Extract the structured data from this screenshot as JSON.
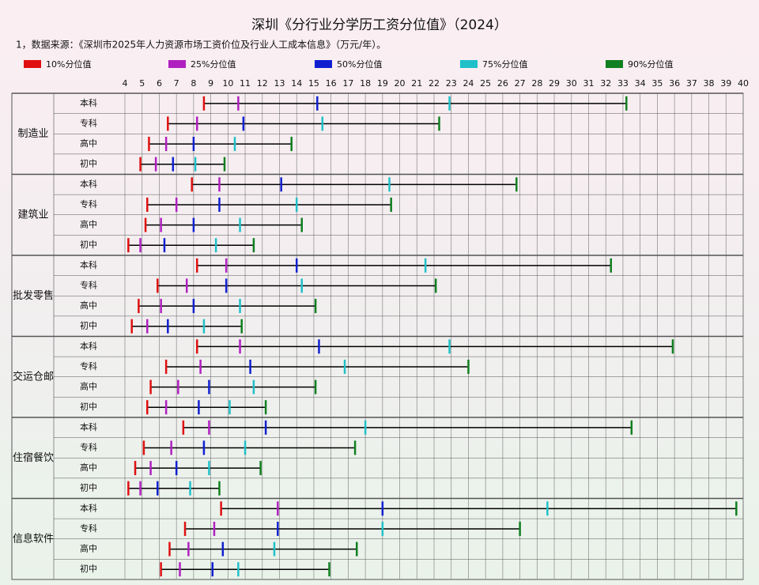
{
  "chart_data": {
    "type": "range",
    "title": "深圳《分行业分学历工资分位值》（2024）",
    "subtitle": "1，数据来源：《深圳市2025年人力资源市场工资价位及行业人工成本信息》（万元/年）。",
    "groups": [
      "制造业",
      "建筑业",
      "批发零售",
      "交运仓邮",
      "住宿餐饮",
      "信息软件"
    ],
    "row_labels": [
      "本科",
      "专科",
      "高中",
      "初中",
      "本科",
      "专科",
      "高中",
      "初中",
      "本科",
      "专科",
      "高中",
      "初中",
      "本科",
      "专科",
      "高中",
      "初中",
      "本科",
      "专科",
      "高中",
      "初中",
      "本科",
      "专科",
      "高中",
      "初中"
    ],
    "xlim": [
      4,
      40
    ],
    "xticks": [
      4,
      5,
      6,
      7,
      8,
      9,
      10,
      11,
      12,
      13,
      14,
      15,
      16,
      17,
      18,
      19,
      20,
      21,
      22,
      23,
      24,
      25,
      26,
      27,
      28,
      29,
      30,
      31,
      32,
      33,
      34,
      35,
      36,
      37,
      38,
      39,
      40
    ],
    "grid": true,
    "range_color": "#000000",
    "series": [
      {
        "name": "10%分位值",
        "color": "#e01010",
        "values": [
          8.6,
          6.5,
          5.4,
          4.9,
          7.9,
          5.3,
          5.2,
          4.2,
          8.2,
          5.9,
          4.8,
          4.4,
          8.2,
          6.4,
          5.5,
          5.3,
          7.4,
          5.1,
          4.6,
          4.2,
          9.6,
          7.5,
          6.6,
          6.1
        ]
      },
      {
        "name": "25%分位值",
        "color": "#b020c0",
        "values": [
          10.6,
          8.2,
          6.4,
          5.8,
          9.5,
          7.0,
          6.1,
          4.9,
          9.9,
          7.6,
          6.1,
          5.3,
          10.7,
          8.4,
          7.1,
          6.4,
          8.9,
          6.7,
          5.5,
          4.9,
          12.9,
          9.2,
          7.7,
          7.2
        ]
      },
      {
        "name": "50%分位值",
        "color": "#1020d0",
        "values": [
          15.2,
          10.9,
          8.0,
          6.8,
          13.1,
          9.5,
          8.0,
          6.3,
          14.0,
          9.9,
          8.0,
          6.5,
          15.3,
          11.3,
          8.9,
          8.3,
          12.2,
          8.6,
          7.0,
          5.9,
          19.0,
          12.9,
          9.7,
          9.1
        ]
      },
      {
        "name": "75%分位值",
        "color": "#20c0c8",
        "values": [
          22.9,
          15.5,
          10.4,
          8.1,
          19.4,
          14.0,
          10.7,
          9.3,
          21.5,
          14.3,
          10.7,
          8.6,
          22.9,
          16.8,
          11.5,
          10.1,
          18.0,
          11.0,
          8.9,
          7.8,
          28.6,
          19.0,
          12.7,
          10.6
        ]
      },
      {
        "name": "90%分位值",
        "color": "#108020",
        "values": [
          33.2,
          22.3,
          13.7,
          9.8,
          26.8,
          19.5,
          14.3,
          11.5,
          32.3,
          22.1,
          15.1,
          10.8,
          35.9,
          24.0,
          15.1,
          12.2,
          33.5,
          17.4,
          11.9,
          9.5,
          39.6,
          27.0,
          17.5,
          15.9
        ]
      }
    ]
  }
}
